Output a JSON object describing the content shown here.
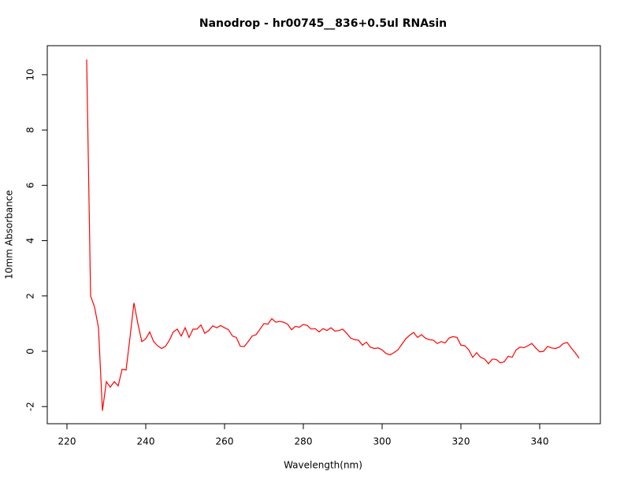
{
  "chart_data": {
    "type": "line",
    "title": "Nanodrop - hr00745__836+0.5ul RNAsin",
    "x_label": "Wavelength(nm)",
    "y_label": "10mm Absorbance",
    "x": [
      225,
      226,
      227,
      228,
      229,
      230,
      231,
      232,
      233,
      234,
      235,
      236,
      237,
      238,
      239,
      240,
      241,
      242,
      243,
      244,
      245,
      246,
      247,
      248,
      249,
      250,
      251,
      252,
      253,
      254,
      255,
      256,
      257,
      258,
      259,
      260,
      261,
      262,
      263,
      264,
      265,
      266,
      267,
      268,
      269,
      270,
      271,
      272,
      273,
      274,
      275,
      276,
      277,
      278,
      279,
      280,
      281,
      282,
      283,
      284,
      285,
      286,
      287,
      288,
      289,
      290,
      291,
      292,
      293,
      294,
      295,
      296,
      297,
      298,
      299,
      300,
      301,
      302,
      303,
      304,
      305,
      306,
      307,
      308,
      309,
      310,
      311,
      312,
      313,
      314,
      315,
      316,
      317,
      318,
      319,
      320,
      321,
      322,
      323,
      324,
      325,
      326,
      327,
      328,
      329,
      330,
      331,
      332,
      333,
      334,
      335,
      336,
      337,
      338,
      339,
      340,
      341,
      342,
      343,
      344,
      345,
      346,
      347,
      348,
      349,
      350
    ],
    "series": [
      {
        "color": "#ff0000",
        "values": [
          10.55,
          2.0,
          1.6,
          0.85,
          -2.15,
          -1.1,
          -1.3,
          -1.1,
          -1.25,
          -0.65,
          -0.68,
          0.5,
          1.75,
          1.0,
          0.35,
          0.45,
          0.7,
          0.35,
          0.2,
          0.1,
          0.18,
          0.4,
          0.7,
          0.8,
          0.55,
          0.85,
          0.5,
          0.8,
          0.8,
          0.95,
          0.65,
          0.75,
          0.92,
          0.85,
          0.93,
          0.85,
          0.78,
          0.55,
          0.5,
          0.18,
          0.17,
          0.35,
          0.55,
          0.6,
          0.8,
          1.0,
          0.98,
          1.18,
          1.05,
          1.08,
          1.05,
          0.98,
          0.78,
          0.9,
          0.87,
          0.97,
          0.93,
          0.8,
          0.82,
          0.7,
          0.82,
          0.75,
          0.85,
          0.73,
          0.75,
          0.8,
          0.65,
          0.48,
          0.42,
          0.4,
          0.22,
          0.33,
          0.15,
          0.1,
          0.12,
          0.05,
          -0.08,
          -0.13,
          -0.05,
          0.05,
          0.25,
          0.45,
          0.58,
          0.68,
          0.5,
          0.6,
          0.47,
          0.42,
          0.4,
          0.28,
          0.35,
          0.3,
          0.48,
          0.53,
          0.5,
          0.22,
          0.2,
          0.05,
          -0.22,
          -0.05,
          -0.22,
          -0.28,
          -0.45,
          -0.28,
          -0.3,
          -0.42,
          -0.38,
          -0.18,
          -0.22,
          0.05,
          0.15,
          0.13,
          0.2,
          0.28,
          0.12,
          -0.02,
          0.0,
          0.18,
          0.12,
          0.1,
          0.15,
          0.28,
          0.32,
          0.12,
          -0.05,
          -0.25
        ]
      }
    ],
    "xlim": [
      215,
      355.4
    ],
    "ylim": [
      -2.62,
      11.05
    ],
    "xticks": [
      220,
      240,
      260,
      280,
      300,
      320,
      340
    ],
    "yticks": [
      -2,
      0,
      2,
      4,
      6,
      8,
      10
    ]
  }
}
